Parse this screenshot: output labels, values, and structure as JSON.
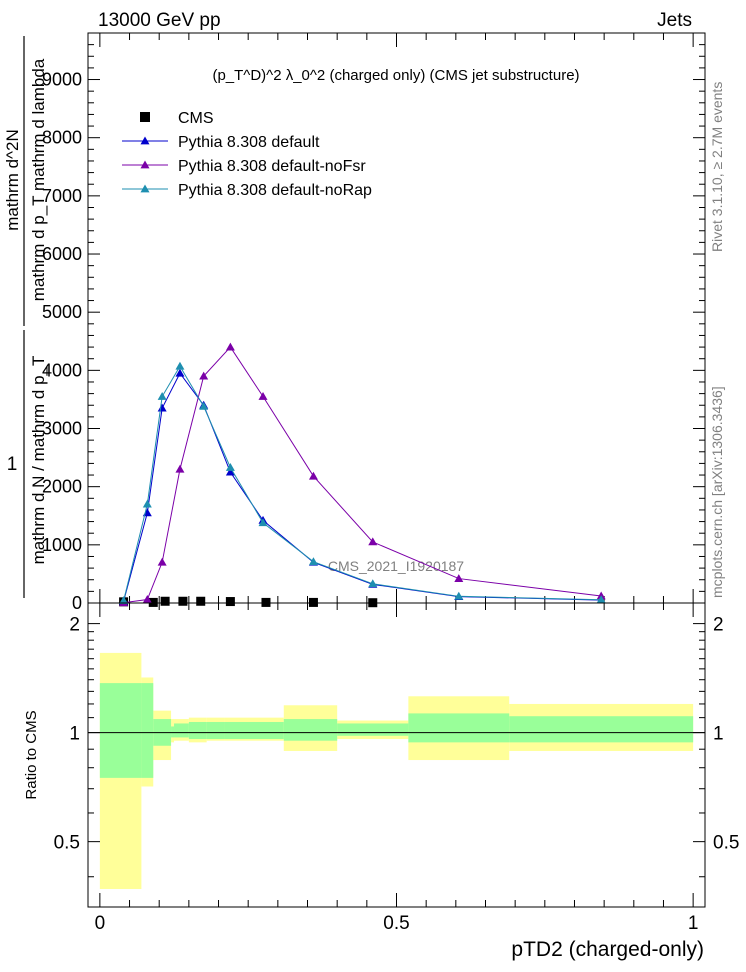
{
  "header": {
    "left": "13000 GeV pp",
    "right": "Jets"
  },
  "side_labels": {
    "rivet": "Rivet 3.1.10, ≥ 2.7M events",
    "mcplots": "mcplots.cern.ch [arXiv:1306.3436]"
  },
  "chart_data": [
    {
      "type": "line",
      "title": "(p_T^D)^2 λ_0^2 (charged only) (CMS jet substructure)",
      "ylabel": "1 / mathrm d N / mathrm d p_T   mathrm d^2N / mathrm d p_T mathrm d lambda",
      "ylabel_parts": {
        "numerator": "1",
        "denominator": "mathrm d N / mathrm d p_T",
        "rhs_numerator": "mathrm d^2N",
        "rhs_denominator": "mathrm d p_T mathrm d lambda"
      },
      "watermark": "CMS_2021_I1920187",
      "xlim": [
        -0.02,
        1.02
      ],
      "ylim": [
        0,
        9800
      ],
      "yticks": [
        0,
        1000,
        2000,
        3000,
        4000,
        5000,
        6000,
        7000,
        8000,
        9000
      ],
      "ytick_labels": [
        "0",
        "1000",
        "2000",
        "3000",
        "4000",
        "5000",
        "6000",
        "7000",
        "8000",
        "9000"
      ],
      "legend_position": "top-left",
      "series": [
        {
          "name": "CMS",
          "color": "#000000",
          "marker": "square",
          "x": [
            0.04,
            0.09,
            0.11,
            0.14,
            0.17,
            0.22,
            0.28,
            0.36,
            0.46
          ],
          "y": [
            20,
            10,
            30,
            30,
            30,
            25,
            10,
            10,
            5
          ]
        },
        {
          "name": "Pythia 8.308 default",
          "color": "#0000cc",
          "marker": "triangle",
          "x": [
            0.04,
            0.08,
            0.105,
            0.135,
            0.175,
            0.22,
            0.275,
            0.36,
            0.46,
            0.605,
            0.845
          ],
          "y": [
            30,
            1550,
            3350,
            3950,
            3400,
            2250,
            1420,
            700,
            320,
            110,
            50
          ]
        },
        {
          "name": "Pythia 8.308 default-noFsr",
          "color": "#7b00a8",
          "marker": "triangle",
          "x": [
            0.04,
            0.08,
            0.105,
            0.135,
            0.175,
            0.22,
            0.275,
            0.36,
            0.46,
            0.605,
            0.845
          ],
          "y": [
            5,
            60,
            700,
            2300,
            3900,
            4400,
            3550,
            2180,
            1050,
            420,
            120
          ]
        },
        {
          "name": "Pythia 8.308 default-noRap",
          "color": "#1e8fb0",
          "marker": "triangle",
          "x": [
            0.04,
            0.08,
            0.105,
            0.135,
            0.175,
            0.22,
            0.275,
            0.36,
            0.46,
            0.605,
            0.845
          ],
          "y": [
            40,
            1700,
            3550,
            4070,
            3380,
            2330,
            1380,
            710,
            330,
            115,
            55
          ]
        }
      ]
    },
    {
      "type": "area",
      "ylabel": "Ratio to CMS",
      "xlabel": "pTD2 (charged-only)",
      "xlim": [
        -0.02,
        1.02
      ],
      "ylim": [
        0.33,
        2.28
      ],
      "yticks": [
        0.5,
        1,
        2
      ],
      "ytick_labels": [
        "0.5",
        "1",
        "2"
      ],
      "xticks": [
        0,
        0.5,
        1
      ],
      "xtick_labels": [
        "0",
        "0.5",
        "1"
      ],
      "bands": {
        "edges": [
          0.0,
          0.07,
          0.09,
          0.12,
          0.125,
          0.15,
          0.18,
          0.21,
          0.31,
          0.4,
          0.52,
          0.69,
          1.0
        ],
        "inner_lo": [
          0.75,
          0.75,
          0.92,
          0.97,
          0.97,
          0.96,
          0.96,
          0.96,
          0.95,
          0.98,
          0.94,
          0.94
        ],
        "inner_hi": [
          1.37,
          1.37,
          1.09,
          1.04,
          1.06,
          1.07,
          1.07,
          1.07,
          1.09,
          1.06,
          1.13,
          1.11
        ],
        "outer_lo": [
          0.37,
          0.71,
          0.84,
          0.94,
          0.95,
          0.94,
          0.95,
          0.95,
          0.89,
          0.96,
          0.84,
          0.89
        ],
        "outer_hi": [
          1.66,
          1.42,
          1.15,
          1.09,
          1.09,
          1.1,
          1.1,
          1.1,
          1.19,
          1.08,
          1.26,
          1.2
        ],
        "inner_color": "#99ff99",
        "outer_color": "#ffff99"
      }
    }
  ]
}
